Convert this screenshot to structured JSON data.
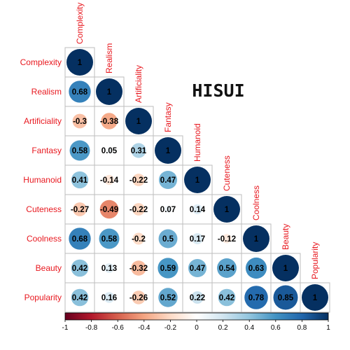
{
  "chart_data": {
    "type": "heatmap",
    "subtype": "correlation-matrix-lower-triangle-circles",
    "title": "HISUI",
    "variables": [
      "Complexity",
      "Realism",
      "Artificiality",
      "Fantasy",
      "Humanoid",
      "Cuteness",
      "Coolness",
      "Beauty",
      "Popularity"
    ],
    "matrix": [
      [
        1
      ],
      [
        0.68,
        1
      ],
      [
        -0.3,
        -0.38,
        1
      ],
      [
        0.58,
        0.05,
        0.31,
        1
      ],
      [
        0.41,
        -0.14,
        -0.22,
        0.47,
        1
      ],
      [
        -0.27,
        -0.49,
        -0.22,
        0.07,
        0.14,
        1
      ],
      [
        0.68,
        0.58,
        -0.2,
        0.5,
        0.17,
        -0.12,
        1
      ],
      [
        0.42,
        0.13,
        -0.32,
        0.59,
        0.47,
        0.54,
        0.63,
        1
      ],
      [
        0.42,
        0.16,
        -0.26,
        0.52,
        0.22,
        0.42,
        0.78,
        0.85,
        1
      ]
    ],
    "value_labels": [
      [
        "1"
      ],
      [
        "0.68",
        "1"
      ],
      [
        "-0.3",
        "-0.38",
        "1"
      ],
      [
        "0.58",
        "0.05",
        "0.31",
        "1"
      ],
      [
        "0.41",
        "-0.14",
        "-0.22",
        "0.47",
        "1"
      ],
      [
        "-0.27",
        "-0.49",
        "-0.22",
        "0.07",
        "0.14",
        "1"
      ],
      [
        "0.68",
        "0.58",
        "-0.2",
        "0.5",
        "0.17",
        "-0.12",
        "1"
      ],
      [
        "0.42",
        "0.13",
        "-0.32",
        "0.59",
        "0.47",
        "0.54",
        "0.63",
        "1"
      ],
      [
        "0.42",
        "0.16",
        "-0.26",
        "0.52",
        "0.22",
        "0.42",
        "0.78",
        "0.85",
        "1"
      ]
    ],
    "colorbar": {
      "range": [
        -1,
        1
      ],
      "ticks": [
        "-1",
        "-0.8",
        "-0.6",
        "-0.4",
        "-0.2",
        "0",
        "0.2",
        "0.4",
        "0.6",
        "0.8",
        "1"
      ],
      "placement": "bottom"
    },
    "colors": {
      "label": "#e8181f",
      "grid": "#bebebe",
      "negative_end": "#67001f",
      "neutral": "#ffffff",
      "positive_end": "#053061"
    }
  }
}
